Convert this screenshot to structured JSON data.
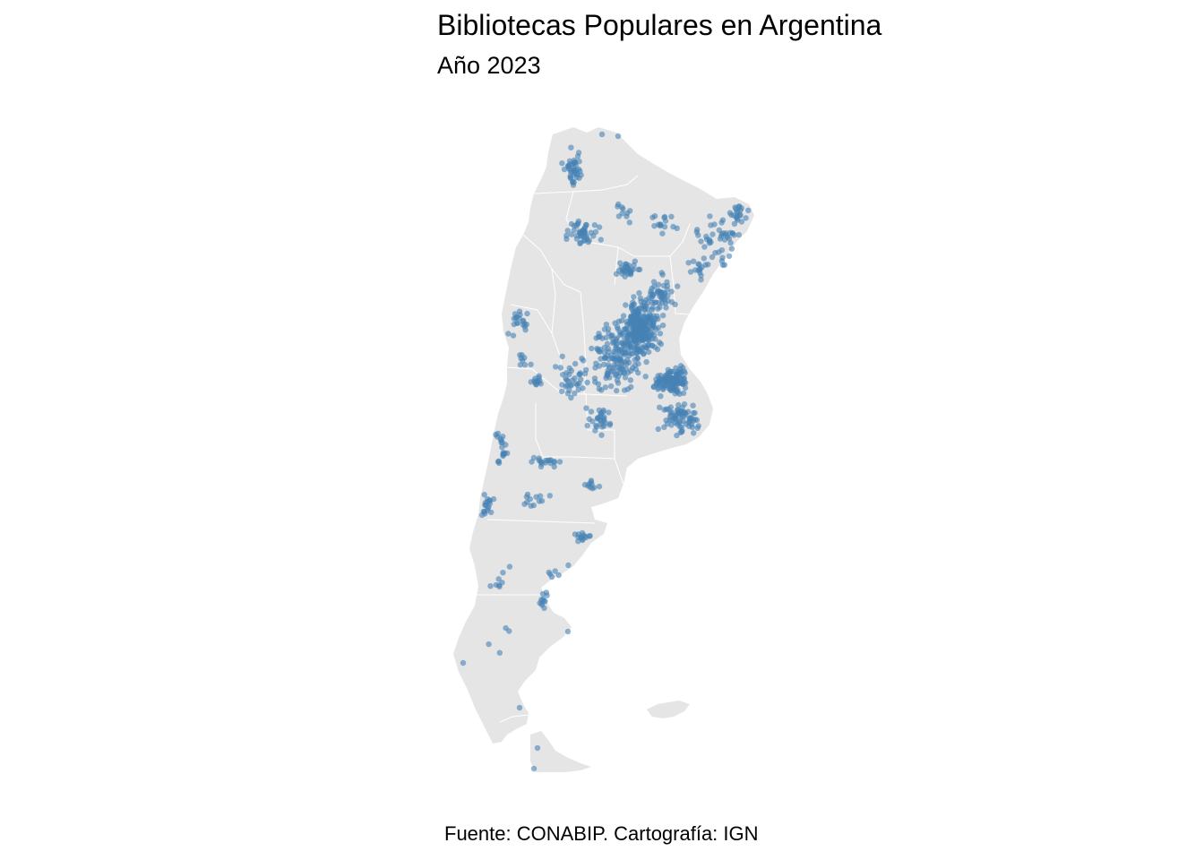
{
  "title": "Bibliotecas Populares en Argentina",
  "subtitle": "Año 2023",
  "caption": "Fuente: CONABIP. Cartografía: IGN",
  "colors": {
    "land": "#e5e5e5",
    "borders": "#ffffff",
    "points": "#4682b4",
    "background": "#ffffff"
  },
  "map_layers": [
    "provincias",
    "bibliotecas-populares"
  ]
}
